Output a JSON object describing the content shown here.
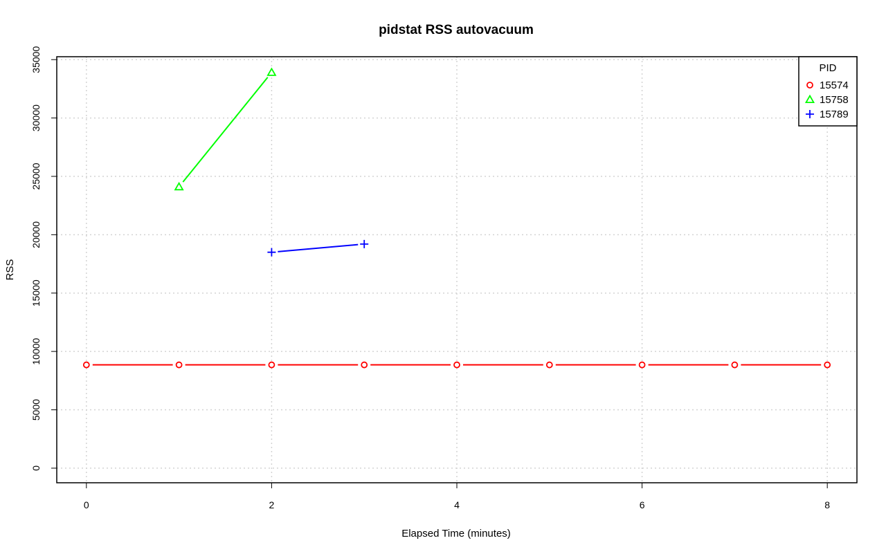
{
  "chart_data": {
    "type": "line",
    "title": "pidstat RSS autovacuum",
    "xlabel": "Elapsed Time (minutes)",
    "ylabel": "RSS",
    "xlim": [
      -0.32,
      8.32
    ],
    "ylim": [
      -1250,
      35250
    ],
    "x_ticks": [
      0,
      2,
      4,
      6,
      8
    ],
    "y_ticks": [
      0,
      5000,
      10000,
      15000,
      20000,
      25000,
      30000,
      35000
    ],
    "grid": true,
    "legend": {
      "title": "PID",
      "position": "top-right"
    },
    "series": [
      {
        "name": "15574",
        "color": "#ff0000",
        "marker": "circle",
        "points": [
          [
            0,
            8850
          ],
          [
            1,
            8850
          ],
          [
            2,
            8850
          ],
          [
            3,
            8850
          ],
          [
            4,
            8850
          ],
          [
            5,
            8850
          ],
          [
            6,
            8850
          ],
          [
            7,
            8850
          ],
          [
            8,
            8850
          ]
        ]
      },
      {
        "name": "15758",
        "color": "#00ff00",
        "marker": "triangle",
        "points": [
          [
            1,
            24100
          ],
          [
            2,
            33900
          ]
        ]
      },
      {
        "name": "15789",
        "color": "#0000ff",
        "marker": "plus",
        "points": [
          [
            2,
            18500
          ],
          [
            3,
            19200
          ]
        ]
      }
    ]
  }
}
